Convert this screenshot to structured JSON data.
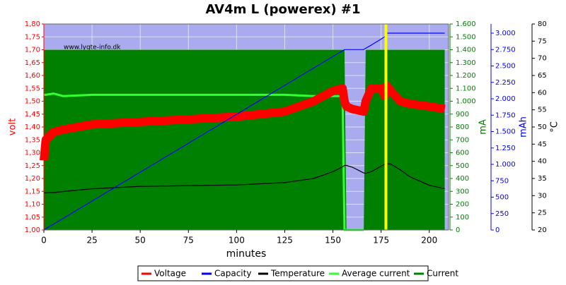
{
  "chart_data": {
    "type": "line",
    "title": "AV4m L (powerex) #1",
    "watermark": "www.lygte-info.dk",
    "xlabel": "minutes",
    "ylabel": "volt",
    "y2label": "mA",
    "y3label": "mAh",
    "y4label": "°C",
    "x": [
      0,
      1,
      5,
      10,
      25,
      50,
      75,
      100,
      125,
      140,
      150,
      155,
      156,
      157,
      160,
      166,
      167,
      170,
      175,
      177,
      178,
      180,
      185,
      190,
      200,
      208
    ],
    "xlim": [
      0,
      210
    ],
    "xticks": [
      0,
      25,
      50,
      75,
      100,
      125,
      150,
      175,
      200
    ],
    "ylim": [
      1.0,
      1.8
    ],
    "yticks": [
      {
        "value": 1.0,
        "label": "1,00"
      },
      {
        "value": 1.05,
        "label": "1,05"
      },
      {
        "value": 1.1,
        "label": "1,10"
      },
      {
        "value": 1.15,
        "label": "1,15"
      },
      {
        "value": 1.2,
        "label": "1,20"
      },
      {
        "value": 1.25,
        "label": "1,25"
      },
      {
        "value": 1.3,
        "label": "1,30"
      },
      {
        "value": 1.35,
        "label": "1,35"
      },
      {
        "value": 1.4,
        "label": "1,40"
      },
      {
        "value": 1.45,
        "label": "1,45"
      },
      {
        "value": 1.5,
        "label": "1,50"
      },
      {
        "value": 1.55,
        "label": "1,55"
      },
      {
        "value": 1.6,
        "label": "1,60"
      },
      {
        "value": 1.65,
        "label": "1,65"
      },
      {
        "value": 1.7,
        "label": "1,70"
      },
      {
        "value": 1.75,
        "label": "1,75"
      },
      {
        "value": 1.8,
        "label": "1,80"
      }
    ],
    "y2lim": [
      0,
      1600
    ],
    "y2ticks": [
      0,
      100,
      200,
      300,
      400,
      500,
      600,
      700,
      800,
      900,
      {
        "value": 1000,
        "label": "1.000"
      },
      {
        "value": 1100,
        "label": "1.100"
      },
      {
        "value": 1200,
        "label": "1.200"
      },
      {
        "value": 1300,
        "label": "1.300"
      },
      {
        "value": 1400,
        "label": "1.400"
      },
      {
        "value": 1500,
        "label": "1.500"
      },
      {
        "value": 1600,
        "label": "1.600"
      }
    ],
    "y3lim": [
      0,
      3140
    ],
    "y3ticks": [
      0,
      250,
      500,
      750,
      {
        "value": 1000,
        "label": "1.000"
      },
      {
        "value": 1250,
        "label": "1.250"
      },
      {
        "value": 1500,
        "label": "1.500"
      },
      {
        "value": 1750,
        "label": "1.750"
      },
      {
        "value": 2000,
        "label": "2.000"
      },
      {
        "value": 2250,
        "label": "2.250"
      },
      {
        "value": 2500,
        "label": "2.500"
      },
      {
        "value": 2750,
        "label": "2.750"
      },
      {
        "value": 3000,
        "label": "3.000"
      }
    ],
    "y4lim": [
      20,
      80
    ],
    "y4ticks": [
      20,
      25,
      30,
      35,
      40,
      45,
      50,
      55,
      60,
      65,
      70,
      75,
      80
    ],
    "grid": true,
    "legend": "bottom",
    "series": [
      {
        "name": "Current",
        "color": "#008000",
        "axis": "y2",
        "fill": true,
        "values": [
          1400,
          1400,
          1400,
          1400,
          1400,
          1400,
          1400,
          1400,
          1400,
          1400,
          1400,
          1400,
          1400,
          0,
          0,
          0,
          1400,
          1400,
          1400,
          1400,
          1400,
          1400,
          1400,
          1400,
          1400,
          1400
        ]
      },
      {
        "name": "Average current",
        "color": "#33ff33",
        "axis": "y2",
        "values": [
          1050,
          1050,
          1060,
          1040,
          1050,
          1050,
          1050,
          1050,
          1050,
          1040,
          1040,
          1040,
          0,
          0,
          0,
          0,
          null,
          null,
          null,
          null,
          null,
          null,
          null,
          null,
          null,
          null
        ]
      },
      {
        "name": "Voltage",
        "color": "#ff0000",
        "axis": "y",
        "values": [
          1.27,
          1.35,
          1.38,
          1.39,
          1.41,
          1.42,
          1.43,
          1.44,
          1.46,
          1.5,
          1.54,
          1.55,
          1.5,
          1.48,
          1.47,
          1.46,
          1.5,
          1.55,
          1.55,
          1.52,
          1.56,
          1.54,
          1.5,
          1.49,
          1.48,
          1.47
        ]
      },
      {
        "name": "Temperature",
        "color": "#000000",
        "axis": "y4",
        "values": [
          30.8,
          30.8,
          30.9,
          31.2,
          32.0,
          32.7,
          32.9,
          33.1,
          33.8,
          35.0,
          37.0,
          38.4,
          38.8,
          38.8,
          38.3,
          36.6,
          36.5,
          37.0,
          38.6,
          39.2,
          39.3,
          39.2,
          37.5,
          35.5,
          33.0,
          32.0
        ]
      },
      {
        "name": "Capacity",
        "color": "#0000ff",
        "axis": "y3",
        "values": [
          0,
          18,
          88,
          176,
          441,
          881,
          1322,
          1763,
          2204,
          2468,
          2644,
          2732,
          2750,
          2750,
          2750,
          2750,
          2770,
          2820,
          2910,
          2950,
          3000,
          3000,
          3000,
          3000,
          3000,
          3000
        ]
      }
    ],
    "legend_order": [
      2,
      4,
      3,
      1,
      0
    ]
  }
}
